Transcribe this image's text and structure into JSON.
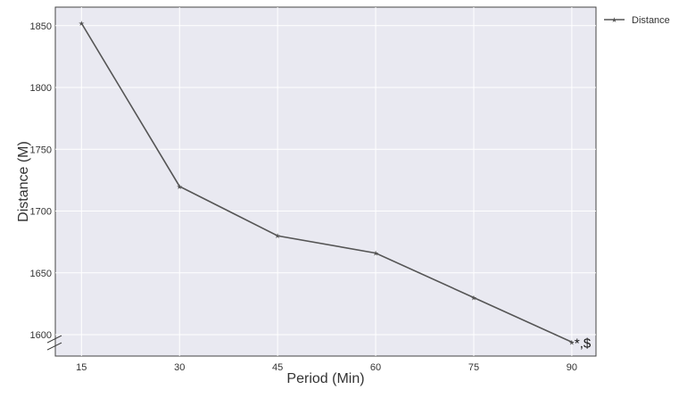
{
  "chart_data": {
    "type": "line",
    "title": "",
    "xlabel": "Period (Min)",
    "ylabel": "Distance (M)",
    "x": [
      15,
      30,
      45,
      60,
      75,
      90
    ],
    "series": [
      {
        "name": "Distance",
        "values": [
          1852,
          1720,
          1680,
          1666,
          1630,
          1594
        ],
        "color": "#555555",
        "marker": "star"
      }
    ],
    "xticks": [
      15,
      30,
      45,
      60,
      75,
      90
    ],
    "yticks": [
      1600,
      1650,
      1700,
      1750,
      1800,
      1850
    ],
    "xlim": [
      11,
      93.7
    ],
    "ylim": [
      1582.7,
      1865
    ],
    "grid": true,
    "background": "#e9e9f1",
    "legend": "outside-top-right",
    "axis_break": "y-axis bottom",
    "annotations": [
      {
        "text": "*,$",
        "x": 90,
        "y": 1594
      }
    ]
  }
}
